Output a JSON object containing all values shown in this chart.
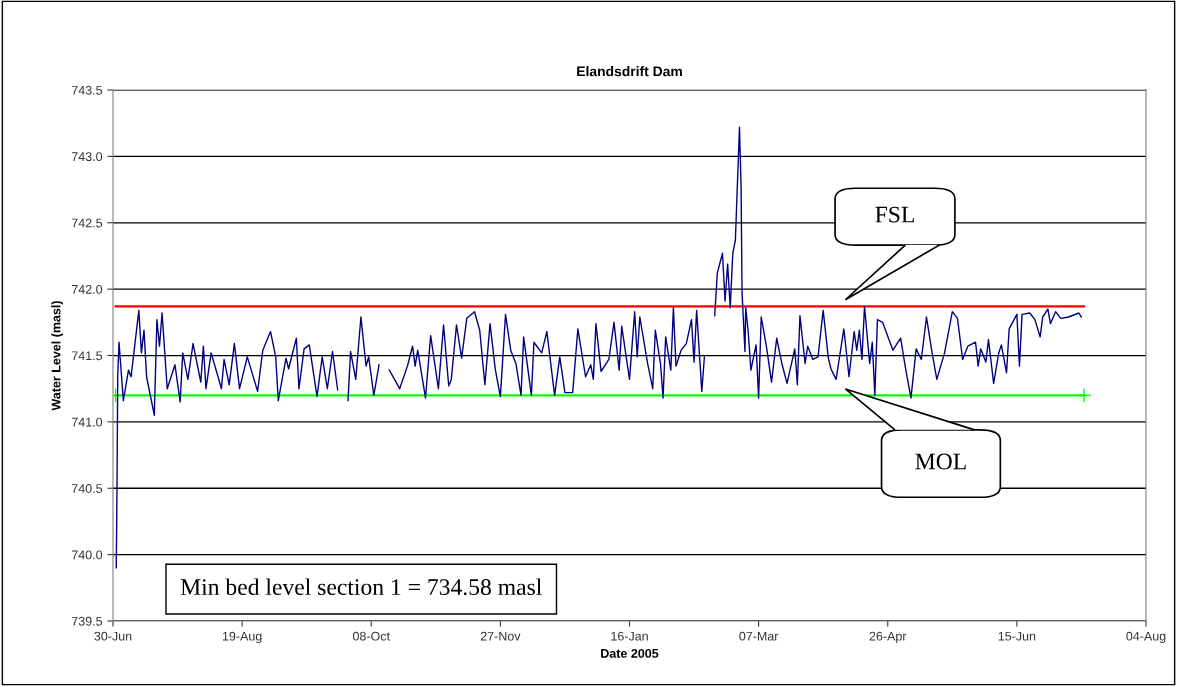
{
  "chart_data": {
    "type": "line",
    "title": "Elandsdrift Dam",
    "xlabel": "Date 2005",
    "ylabel": "Water Level (masl)",
    "annotations": [
      "Min bed level section 1 = 734.58 masl",
      "FSL",
      "MOL"
    ],
    "xlim": [
      "2005-06-30",
      "2006-08-04"
    ],
    "xticks": [
      {
        "value": "2005-06-30",
        "label": "30-Jun"
      },
      {
        "value": "2005-08-19",
        "label": "19-Aug"
      },
      {
        "value": "2005-10-08",
        "label": "08-Oct"
      },
      {
        "value": "2005-11-27",
        "label": "27-Nov"
      },
      {
        "value": "2006-01-16",
        "label": "16-Jan"
      },
      {
        "value": "2006-03-07",
        "label": "07-Mar"
      },
      {
        "value": "2006-04-26",
        "label": "26-Apr"
      },
      {
        "value": "2006-06-15",
        "label": "15-Jun"
      },
      {
        "value": "2006-08-04",
        "label": "04-Aug"
      }
    ],
    "ylim": [
      739.5,
      743.5
    ],
    "yticks": [
      739.5,
      {
        "value": 740,
        "label": "740.0"
      },
      740.5,
      {
        "value": 741,
        "label": "741.0"
      },
      741.5,
      {
        "value": 742,
        "label": "742.0"
      },
      742.5,
      {
        "value": 743,
        "label": "743.0"
      },
      743.5
    ],
    "grid": "y",
    "series": [
      {
        "color": "#000080",
        "marker": "none",
        "x": [
          "2005-07-01T06:00",
          "2005-07-01T10:00",
          "2005-07-01T14:00",
          "2005-07-01T20:00",
          "2005-07-02T08:00",
          "2005-07-04",
          "2005-07-06",
          "2005-07-07",
          "2005-07-10",
          "2005-07-11",
          "2005-07-12",
          "2005-07-13",
          "2005-07-16",
          "2005-07-17",
          "2005-07-18",
          "2005-07-19",
          "2005-07-21",
          "2005-07-24",
          "2005-07-26",
          "2005-07-27",
          "2005-07-29",
          "2005-07-31",
          "2005-08-03",
          "2005-08-04",
          "2005-08-05",
          "2005-08-07",
          "2005-08-11",
          "2005-08-12",
          "2005-08-14",
          "2005-08-16",
          "2005-08-18",
          "2005-08-21",
          "2005-08-25",
          "2005-08-27",
          "2005-08-30",
          "2005-09-01",
          "2005-09-02",
          "2005-09-05",
          "2005-09-06",
          "2005-09-09",
          "2005-09-10",
          "2005-09-12",
          "2005-09-14",
          "2005-09-17",
          "2005-09-19",
          "2005-09-21",
          "2005-09-23",
          "2005-09-25",
          "2005-09-27",
          "2005-09-29",
          "2005-09-30",
          "2005-10-02",
          "2005-10-04",
          "2005-10-06",
          "2005-10-07",
          "2005-10-09",
          "2005-10-11",
          "2005-10-13",
          "2005-10-15",
          "2005-10-19",
          "2005-10-22",
          "2005-10-24",
          "2005-10-25",
          "2005-10-26",
          "2005-10-29",
          "2005-10-31",
          "2005-11-03",
          "2005-11-05",
          "2005-11-07",
          "2005-11-08",
          "2005-11-10",
          "2005-11-12",
          "2005-11-14",
          "2005-11-17",
          "2005-11-19",
          "2005-11-21",
          "2005-11-23",
          "2005-11-25",
          "2005-11-27",
          "2005-11-29",
          "2005-12-01",
          "2005-12-03",
          "2005-12-05",
          "2005-12-06",
          "2005-12-09",
          "2005-12-10",
          "2005-12-13",
          "2005-12-15",
          "2005-12-18",
          "2005-12-20",
          "2005-12-22",
          "2005-12-25",
          "2005-12-27",
          "2005-12-30",
          "2006-01-01",
          "2006-01-02",
          "2006-01-03",
          "2006-01-05",
          "2006-01-08",
          "2006-01-10",
          "2006-01-12",
          "2006-01-13",
          "2006-01-16",
          "2006-01-18",
          "2006-01-19",
          "2006-01-20",
          "2006-01-23",
          "2006-01-25",
          "2006-01-26",
          "2006-01-28",
          "2006-01-29",
          "2006-01-30",
          "2006-02-01",
          "2006-02-02",
          "2006-02-03",
          "2006-02-05",
          "2006-02-07",
          "2006-02-09",
          "2006-02-10",
          "2006-02-11",
          "2006-02-13",
          "2006-02-14",
          "2006-02-16",
          "2006-02-18",
          "2006-02-19",
          "2006-02-21",
          "2006-02-22",
          "2006-02-23",
          "2006-02-24",
          "2006-02-25",
          "2006-02-26",
          "2006-02-27T14:00",
          "2006-02-28T05:00",
          "2006-02-28T14:00",
          "2006-03-01T17:00",
          "2006-03-02",
          "2006-03-03",
          "2006-03-04",
          "2006-03-06",
          "2006-03-07",
          "2006-03-08",
          "2006-03-10",
          "2006-03-12",
          "2006-03-14",
          "2006-03-16",
          "2006-03-18",
          "2006-03-21",
          "2006-03-22",
          "2006-03-23",
          "2006-03-25",
          "2006-03-26",
          "2006-03-28",
          "2006-03-30",
          "2006-04-01",
          "2006-04-03",
          "2006-04-04",
          "2006-04-06",
          "2006-04-09",
          "2006-04-11",
          "2006-04-13",
          "2006-04-14",
          "2006-04-15",
          "2006-04-16",
          "2006-04-17",
          "2006-04-19",
          "2006-04-20",
          "2006-04-21",
          "2006-04-22",
          "2006-04-24",
          "2006-04-28",
          "2006-05-01",
          "2006-05-03",
          "2006-05-05",
          "2006-05-07",
          "2006-05-09",
          "2006-05-11",
          "2006-05-13",
          "2006-05-15",
          "2006-05-18",
          "2006-05-21",
          "2006-05-23",
          "2006-05-25",
          "2006-05-27",
          "2006-05-30",
          "2006-05-31",
          "2006-06-01",
          "2006-06-03",
          "2006-06-04",
          "2006-06-06",
          "2006-06-08",
          "2006-06-09",
          "2006-06-11",
          "2006-06-12",
          "2006-06-15",
          "2006-06-16",
          "2006-06-17",
          "2006-06-20",
          "2006-06-22",
          "2006-06-24",
          "2006-06-25",
          "2006-06-27",
          "2006-06-28",
          "2006-06-30",
          "2006-07-02",
          "2006-07-05",
          "2006-07-09",
          "2006-07-10"
        ],
        "values": [
          739.9,
          740.2,
          740.6,
          741.35,
          741.6,
          741.16,
          741.39,
          741.34,
          741.84,
          741.52,
          741.69,
          741.34,
          741.05,
          741.77,
          741.57,
          741.82,
          741.25,
          741.43,
          741.15,
          741.52,
          741.32,
          741.59,
          741.3,
          741.57,
          741.25,
          741.52,
          741.25,
          741.47,
          741.28,
          741.59,
          741.25,
          741.49,
          741.23,
          741.54,
          741.68,
          741.49,
          741.16,
          741.48,
          741.4,
          741.63,
          741.25,
          741.55,
          741.58,
          741.19,
          741.49,
          741.25,
          741.53,
          741.24,
          null,
          741.16,
          741.53,
          741.32,
          741.79,
          741.42,
          741.49,
          741.2,
          741.43,
          null,
          741.39,
          741.25,
          741.42,
          741.57,
          741.42,
          741.54,
          741.18,
          741.65,
          741.25,
          741.73,
          741.27,
          741.32,
          741.73,
          741.48,
          741.78,
          741.83,
          741.69,
          741.28,
          741.74,
          741.4,
          741.19,
          741.81,
          741.54,
          741.44,
          741.2,
          741.64,
          741.2,
          741.6,
          741.52,
          741.68,
          741.2,
          741.49,
          741.22,
          741.22,
          741.7,
          741.34,
          741.43,
          741.32,
          741.74,
          741.38,
          741.47,
          741.75,
          741.39,
          741.72,
          741.32,
          741.83,
          741.49,
          741.79,
          741.44,
          741.25,
          741.69,
          741.44,
          741.18,
          741.64,
          741.39,
          741.86,
          741.42,
          741.54,
          741.59,
          741.77,
          741.45,
          741.84,
          741.23,
          741.49,
          null,
          741.8,
          742.12,
          742.27,
          741.91,
          742.19,
          741.86,
          742.27,
          742.37,
          743.22,
          742.77,
          741.97,
          741.53,
          741.86,
          741.67,
          741.39,
          741.58,
          741.18,
          741.79,
          741.57,
          741.3,
          741.63,
          741.44,
          741.29,
          741.55,
          741.28,
          741.8,
          741.44,
          741.57,
          741.47,
          741.49,
          741.84,
          741.48,
          741.4,
          741.32,
          741.7,
          741.34,
          741.68,
          741.54,
          741.69,
          741.47,
          741.87,
          741.44,
          741.6,
          741.2,
          741.77,
          741.75,
          741.54,
          741.63,
          741.39,
          741.18,
          741.55,
          741.47,
          741.79,
          741.54,
          741.32,
          741.52,
          741.83,
          741.78,
          741.47,
          741.57,
          741.6,
          741.42,
          741.55,
          741.45,
          741.62,
          741.29,
          741.52,
          741.58,
          741.37,
          741.7,
          741.81,
          741.42,
          741.81,
          741.82,
          741.77,
          741.64,
          741.79,
          741.85,
          741.74,
          741.83,
          741.78,
          741.79,
          741.82,
          741.79
        ]
      },
      {
        "color": "#ff0000",
        "marker": "none",
        "x": [
          "2005-07-01",
          "2006-07-11"
        ],
        "values": [
          741.87,
          741.87
        ]
      },
      {
        "color": "#00ff00",
        "marker": "cross",
        "x": [
          "2005-07-01",
          "2006-07-11"
        ],
        "values": [
          741.2,
          741.2
        ]
      }
    ]
  }
}
